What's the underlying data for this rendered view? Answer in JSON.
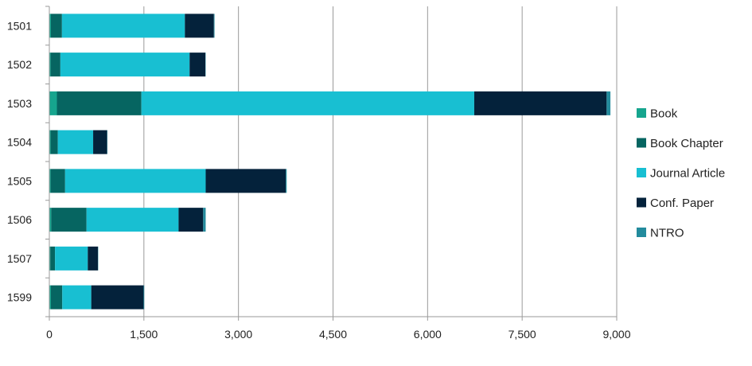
{
  "chart_data": {
    "type": "bar",
    "orientation": "horizontal",
    "stacked": true,
    "title": "",
    "xlabel": "",
    "ylabel": "",
    "categories": [
      "1501",
      "1502",
      "1503",
      "1504",
      "1505",
      "1506",
      "1507",
      "1599"
    ],
    "series": [
      {
        "name": "Book",
        "color": "#16a58e",
        "values": [
          25,
          20,
          120,
          20,
          20,
          30,
          15,
          25
        ]
      },
      {
        "name": "Book Chapter",
        "color": "#066561",
        "values": [
          175,
          155,
          1340,
          115,
          230,
          560,
          75,
          180
        ]
      },
      {
        "name": "Journal Article",
        "color": "#18bfd2",
        "values": [
          1950,
          2050,
          5280,
          560,
          2230,
          1460,
          520,
          460
        ]
      },
      {
        "name": "Conf. Paper",
        "color": "#04223b",
        "values": [
          460,
          250,
          2100,
          220,
          1270,
          390,
          160,
          830
        ]
      },
      {
        "name": "NTRO",
        "color": "#238b9d",
        "values": [
          10,
          5,
          60,
          5,
          15,
          40,
          5,
          10
        ]
      }
    ],
    "xlim": [
      0,
      9000
    ],
    "xticks": [
      "0",
      "1,500",
      "3,000",
      "4,500",
      "6,000",
      "7,500",
      "9,000"
    ],
    "grid": true,
    "legend_position": "right"
  }
}
